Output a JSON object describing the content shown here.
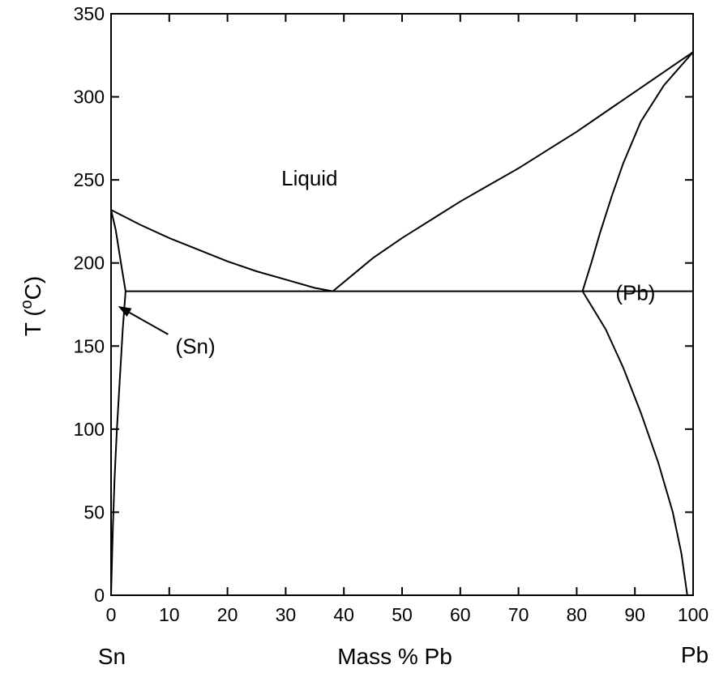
{
  "chart_data": {
    "type": "line",
    "title": "",
    "xlabel": "Mass % Pb",
    "ylabel": "T (oC)",
    "ylabel_main": "T (",
    "ylabel_sup": "o",
    "ylabel_unit": "C)",
    "x_end_labels": {
      "left": "Sn",
      "right": "Pb"
    },
    "xlim": [
      0,
      100
    ],
    "ylim": [
      0,
      350
    ],
    "xticks": [
      0,
      10,
      20,
      30,
      40,
      50,
      60,
      70,
      80,
      90,
      100
    ],
    "yticks": [
      0,
      50,
      100,
      150,
      200,
      250,
      300,
      350
    ],
    "grid": false,
    "region_labels": [
      {
        "text": "Liquid",
        "x": 34.1,
        "y": 251
      },
      {
        "text": "(Pb)",
        "x": 90.1,
        "y": 182
      },
      {
        "text": "(Sn)",
        "x": 14.5,
        "y": 150
      }
    ],
    "arrow": {
      "from": [
        9.8,
        157
      ],
      "to": [
        1.2,
        174
      ]
    },
    "series": [
      {
        "x": [
          0,
          5,
          10,
          15,
          20,
          25,
          30,
          35,
          38.1
        ],
        "y": [
          232,
          223,
          215,
          208,
          201,
          195,
          190,
          185,
          183
        ]
      },
      {
        "x": [
          38.1,
          45,
          50,
          55,
          60,
          65,
          70,
          75,
          80,
          85,
          90,
          95,
          100
        ],
        "y": [
          183,
          203,
          215,
          226,
          237,
          247,
          257,
          268,
          279,
          291,
          303,
          315,
          327
        ]
      },
      {
        "x": [
          2.5,
          81,
          100
        ],
        "y": [
          183,
          183,
          183
        ]
      },
      {
        "x": [
          0,
          0.8,
          1.7,
          2.5
        ],
        "y": [
          232,
          220,
          200,
          183
        ]
      },
      {
        "x": [
          81,
          82.5,
          84,
          86,
          88,
          91,
          95,
          100
        ],
        "y": [
          183,
          200,
          218,
          240,
          260,
          285,
          307,
          327
        ]
      },
      {
        "x": [
          2.5,
          2.0,
          1.5,
          1.0,
          0.6,
          0.3,
          0
        ],
        "y": [
          183,
          160,
          130,
          100,
          70,
          40,
          0
        ]
      },
      {
        "x": [
          81,
          85,
          88,
          91,
          94,
          96.5,
          98,
          99
        ],
        "y": [
          183,
          160,
          137,
          110,
          80,
          50,
          25,
          0
        ]
      }
    ]
  }
}
